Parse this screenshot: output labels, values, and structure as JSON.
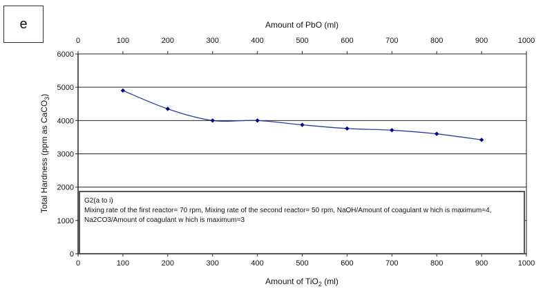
{
  "panel_label": "e",
  "note": {
    "title": "G2(a to i)",
    "text": "Mixing rate of the first reactor= 70 rpm, Mixing rate of the second reactor= 50 rpm, NaOH/Amount of coagulant w hich is maximum=4, Na2CO3/Amount of coagulant w hich is maximum=3"
  },
  "chart_data": {
    "type": "line",
    "x2label": "Amount of PbO (ml)",
    "xlabel_main": "Amount of TiO",
    "xlabel_sub": "2",
    "xlabel_unit": " (ml)",
    "ylabel_main": "Total Hardness (ppm as CaCO",
    "ylabel_sub": "3",
    "ylabel_end": ")",
    "xlim": [
      0,
      1000
    ],
    "ylim": [
      0,
      6000
    ],
    "xticks": [
      0,
      100,
      200,
      300,
      400,
      500,
      600,
      700,
      800,
      900,
      1000
    ],
    "yticks": [
      0,
      1000,
      2000,
      3000,
      4000,
      5000,
      6000
    ],
    "x": [
      100,
      200,
      300,
      400,
      500,
      600,
      700,
      800,
      900
    ],
    "y": [
      4900,
      4350,
      4000,
      4000,
      3870,
      3760,
      3710,
      3600,
      3420
    ],
    "marker_color": "#00008b",
    "line_color": "#2a3c9c",
    "grid": true
  }
}
